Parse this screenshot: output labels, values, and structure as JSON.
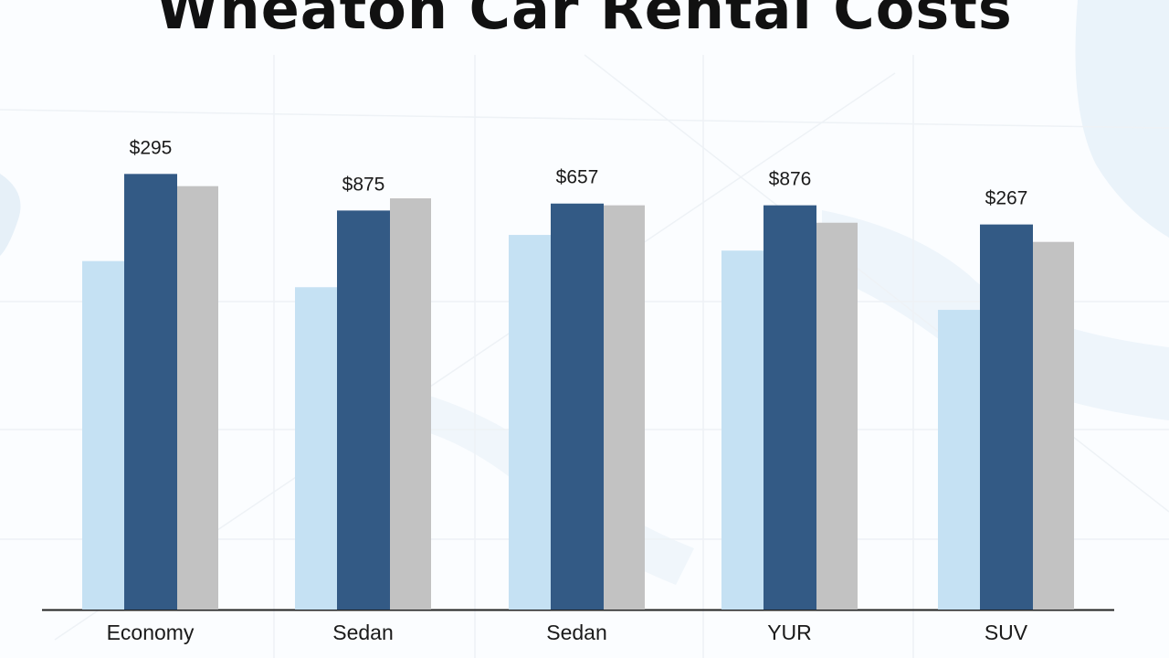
{
  "chart_data": {
    "type": "bar",
    "title": "Wheaton Car Rental Costs",
    "xlabel": "",
    "ylabel": "",
    "categories": [
      "Economy",
      "Sedan",
      "Sedan",
      "YUR",
      "SUV"
    ],
    "series": [
      {
        "color": "#c5e1f3",
        "values": [
          200,
          185,
          215,
          206,
          172
        ]
      },
      {
        "color": "#335a85",
        "values": [
          250,
          229,
          233,
          232,
          221
        ]
      },
      {
        "color": "#c2c2c2",
        "values": [
          243,
          236,
          232,
          222,
          211
        ]
      }
    ],
    "data_labels": [
      "$295",
      "$875",
      "$657",
      "$876",
      "$267"
    ],
    "ylim": [
      0,
      300
    ],
    "grid": false,
    "legend": "none",
    "axis_color": "#222222"
  }
}
